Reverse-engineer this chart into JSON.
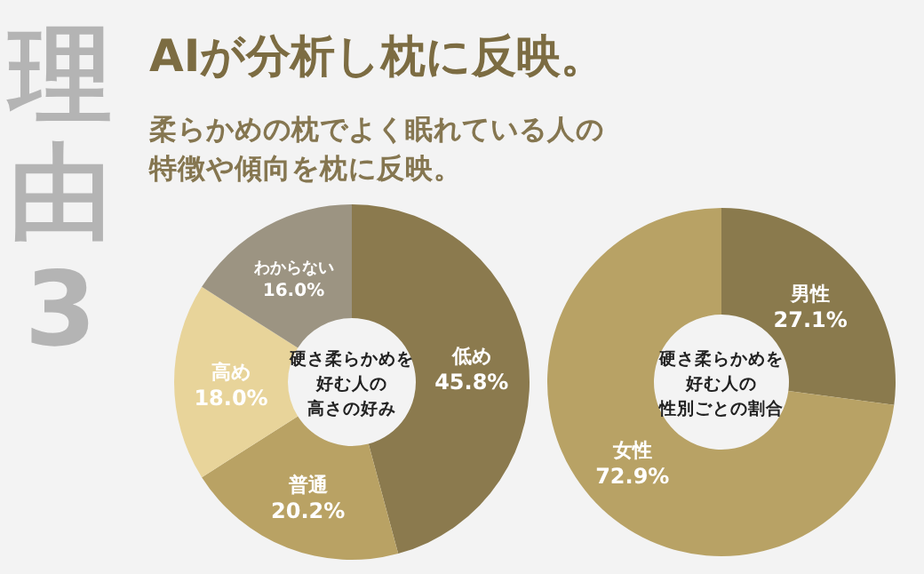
{
  "chart_data": [
    {
      "type": "other",
      "title": "AIが分析し枕に反映。",
      "subtitle": "柔らかめの枕でよく眠れている人の特徴や傾向を枕に反映。",
      "annotations": [
        "理由3"
      ]
    },
    {
      "type": "donut",
      "title": "硬さ柔らかめを好む人の高さの好み",
      "categories": [
        "低め",
        "普通",
        "高め",
        "わからない"
      ],
      "values": [
        45.8,
        20.2,
        18.0,
        16.0
      ],
      "colors": [
        "#8b7a4e",
        "#b9a264",
        "#e8d49a",
        "#9c9482"
      ],
      "value_labels": [
        "45.8%",
        "20.2%",
        "18.0%",
        "16.0%"
      ]
    },
    {
      "type": "donut",
      "title": "硬さ柔らかめを好む人の性別ごとの割合",
      "categories": [
        "男性",
        "女性"
      ],
      "values": [
        27.1,
        72.9
      ],
      "colors": [
        "#8a7a4d",
        "#b8a265"
      ],
      "value_labels": [
        "27.1%",
        "72.9%"
      ]
    }
  ]
}
